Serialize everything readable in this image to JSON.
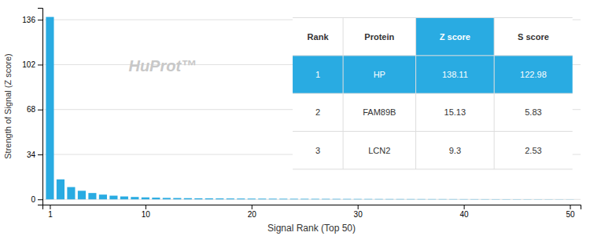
{
  "chart_data": {
    "type": "bar",
    "xlabel": "Signal Rank (Top 50)",
    "ylabel": "Strength of Signal (Z score)",
    "annotations": [
      "HuProt™"
    ],
    "x": [
      1,
      2,
      3,
      4,
      5,
      6,
      7,
      8,
      9,
      10,
      11,
      12,
      13,
      14,
      15,
      16,
      17,
      18,
      19,
      20,
      21,
      22,
      23,
      24,
      25,
      26,
      27,
      28,
      29,
      30,
      31,
      32,
      33,
      34,
      35,
      36,
      37,
      38,
      39,
      40,
      41,
      42,
      43,
      44,
      45,
      46,
      47,
      48,
      49,
      50
    ],
    "values": [
      138.11,
      15.13,
      9.3,
      6.5,
      4.8,
      3.6,
      2.8,
      2.2,
      1.8,
      1.5,
      1.3,
      1.1,
      1.0,
      0.9,
      0.8,
      0.75,
      0.7,
      0.65,
      0.6,
      0.55,
      0.52,
      0.49,
      0.46,
      0.43,
      0.41,
      0.39,
      0.37,
      0.35,
      0.33,
      0.31,
      0.3,
      0.28,
      0.27,
      0.26,
      0.25,
      0.24,
      0.23,
      0.22,
      0.21,
      0.2,
      0.19,
      0.18,
      0.17,
      0.16,
      0.15,
      0.14,
      0.13,
      0.12,
      0.11,
      0.1
    ],
    "color": "#29ABE2",
    "xlim": [
      0.3,
      51
    ],
    "xticks": [
      1,
      10,
      20,
      30,
      40,
      50
    ],
    "ylim": [
      -4,
      145
    ],
    "yticks": [
      0,
      34,
      68,
      102,
      136
    ],
    "grid": true,
    "table": {
      "headers": [
        "Rank",
        "Protein",
        "Z score",
        "S score"
      ],
      "rows": [
        [
          "1",
          "HP",
          "138.11",
          "122.98"
        ],
        [
          "2",
          "FAM89B",
          "15.13",
          "5.83"
        ],
        [
          "3",
          "LCN2",
          "9.3",
          "2.53"
        ]
      ]
    }
  }
}
